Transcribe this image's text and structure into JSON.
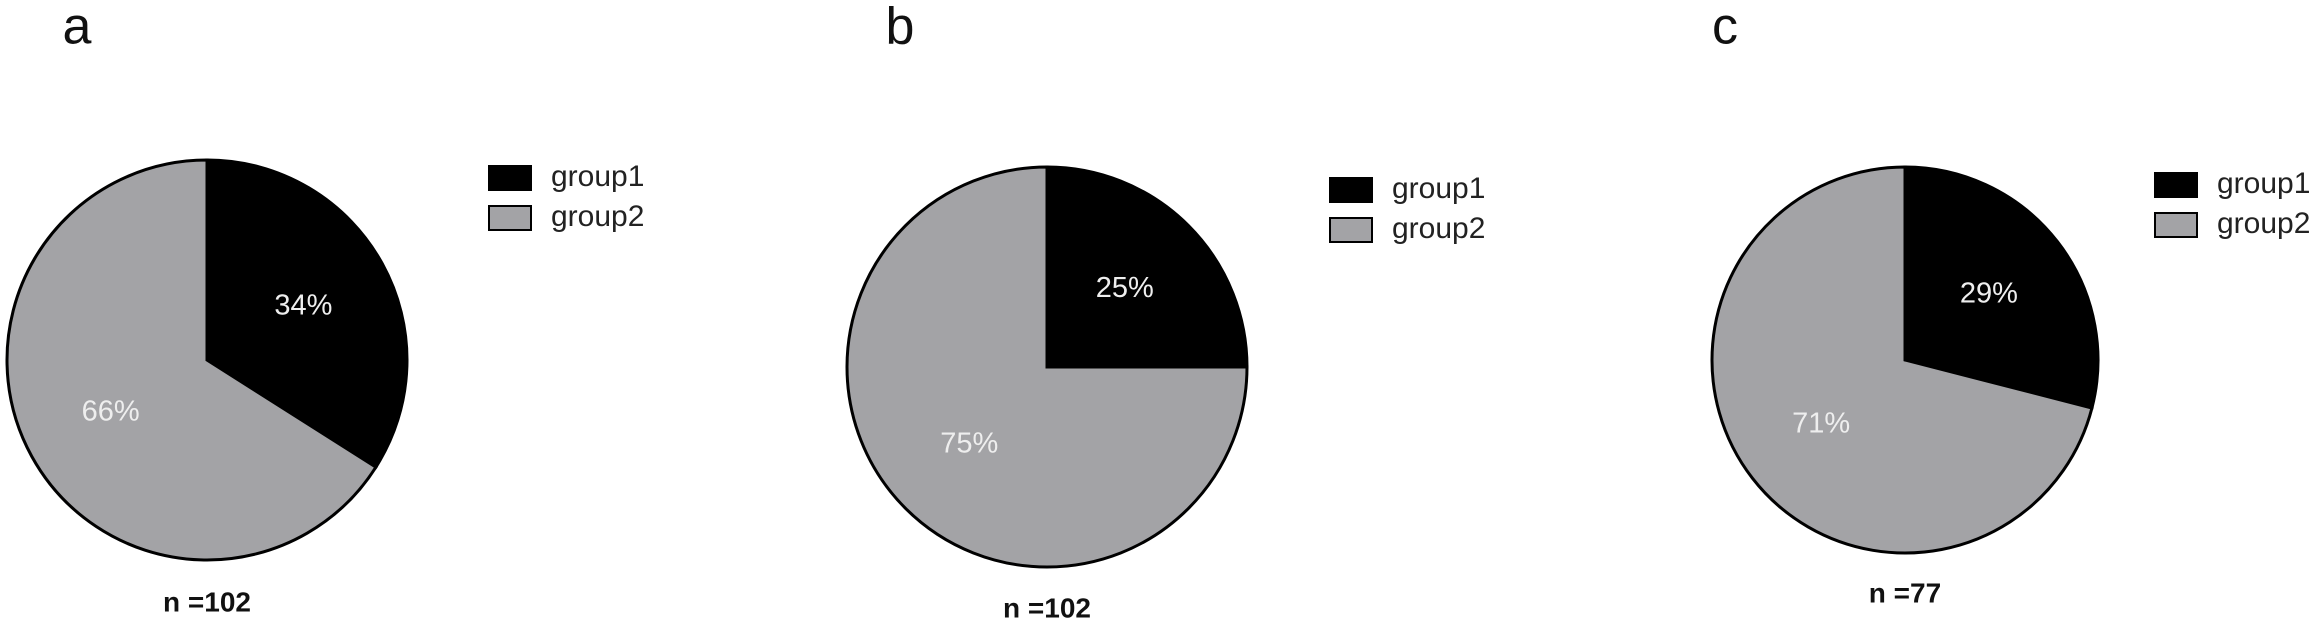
{
  "chart_data": [
    {
      "type": "pie",
      "title": "a",
      "annotation": "n =102",
      "categories": [
        "group1",
        "group2"
      ],
      "values": [
        34,
        66
      ],
      "value_labels": [
        "34%",
        "66%"
      ],
      "colors": [
        "#000000",
        "#a3a3a6"
      ]
    },
    {
      "type": "pie",
      "title": "b",
      "annotation": "n =102",
      "categories": [
        "group1",
        "group2"
      ],
      "values": [
        25,
        75
      ],
      "value_labels": [
        "25%",
        "75%"
      ],
      "colors": [
        "#000000",
        "#a3a3a6"
      ]
    },
    {
      "type": "pie",
      "title": "c",
      "annotation": "n =77",
      "categories": [
        "group1",
        "group2"
      ],
      "values": [
        29,
        71
      ],
      "value_labels": [
        "29%",
        "71%"
      ],
      "colors": [
        "#000000",
        "#a3a3a6"
      ]
    }
  ]
}
